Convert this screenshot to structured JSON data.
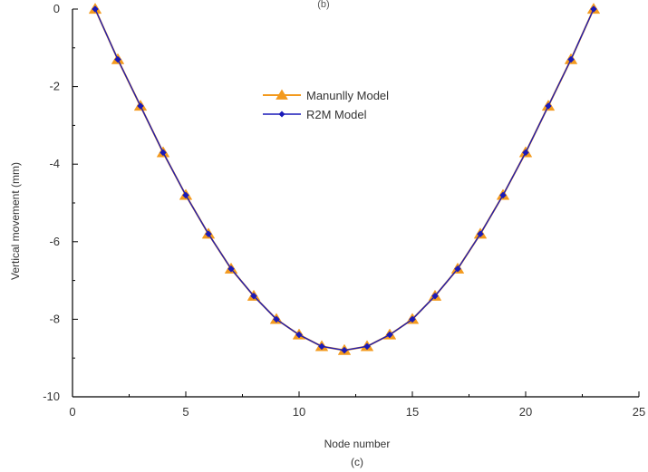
{
  "chart_data": {
    "type": "line",
    "top_label": "(b)",
    "caption": "(c)",
    "xlabel": "Node number",
    "ylabel": "Vertical movement (mm)",
    "xlim": [
      0,
      25
    ],
    "ylim": [
      -10,
      0
    ],
    "x_ticks": [
      0,
      5,
      10,
      15,
      20,
      25
    ],
    "y_ticks": [
      0,
      -2,
      -4,
      -6,
      -8,
      -10
    ],
    "y_tick_labels": [
      "0",
      "-2",
      "-4",
      "-6",
      "-8",
      "-10"
    ],
    "legend_position": "top-center",
    "x": [
      1,
      2,
      3,
      4,
      5,
      6,
      7,
      8,
      9,
      10,
      11,
      12,
      13,
      14,
      15,
      16,
      17,
      18,
      19,
      20,
      21,
      22,
      23
    ],
    "series": [
      {
        "name": "Manunlly Model",
        "color": "#f39a1e",
        "marker": "triangle",
        "values": [
          0,
          -1.3,
          -2.5,
          -3.7,
          -4.8,
          -5.8,
          -6.7,
          -7.4,
          -8.0,
          -8.4,
          -8.7,
          -8.8,
          -8.7,
          -8.4,
          -8.0,
          -7.4,
          -6.7,
          -5.8,
          -4.8,
          -3.7,
          -2.5,
          -1.3,
          0
        ]
      },
      {
        "name": "R2M Model",
        "color": "#1a1ab8",
        "marker": "diamond",
        "values": [
          0,
          -1.3,
          -2.5,
          -3.7,
          -4.8,
          -5.8,
          -6.7,
          -7.4,
          -8.0,
          -8.4,
          -8.7,
          -8.8,
          -8.7,
          -8.4,
          -8.0,
          -7.4,
          -6.7,
          -5.8,
          -4.8,
          -3.7,
          -2.5,
          -1.3,
          0
        ]
      }
    ]
  }
}
